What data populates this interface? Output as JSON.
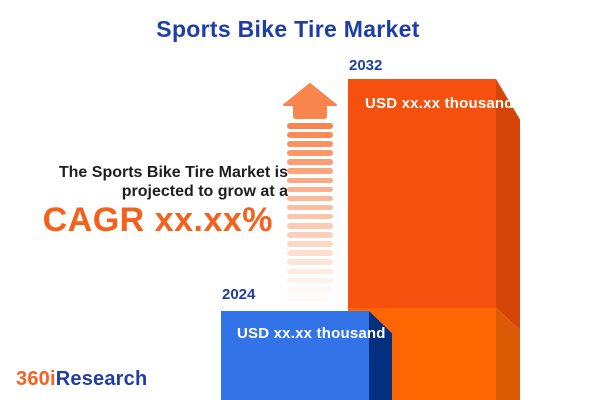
{
  "title": "Sports Bike Tire Market",
  "projection": {
    "line1": "The Sports Bike Tire Market is",
    "line2": "projected to grow at a",
    "cagr": "CAGR xx.xx%"
  },
  "chart_data": {
    "type": "bar",
    "title": "Sports Bike Tire Market",
    "categories": [
      "2024",
      "2032"
    ],
    "values": [
      null,
      null
    ],
    "value_labels": [
      "USD xx.xx thousand",
      "USD xx.xx thousand"
    ],
    "annotation": "The Sports Bike Tire Market is projected to grow at a CAGR xx.xx%",
    "legend": "none",
    "axes": "none",
    "bar_styles": [
      {
        "front": "#3273e8",
        "side": "#04307f"
      },
      {
        "front_top": "#f5500d",
        "front_bottom": "#ff6601",
        "side_top": "#d54508",
        "side_bottom": "#dd5a05"
      }
    ]
  },
  "branding": {
    "logo_orange": "360i",
    "logo_blue": "Research"
  },
  "colors": {
    "title_blue": "#1f3ea5",
    "cagr_orange": "#f4611c",
    "arrow_salmon": "#f8854e",
    "text_dark": "#1e1e1e",
    "background": "#ffffff"
  },
  "icons": {
    "growth_arrow": "upward fading striped arrow"
  }
}
